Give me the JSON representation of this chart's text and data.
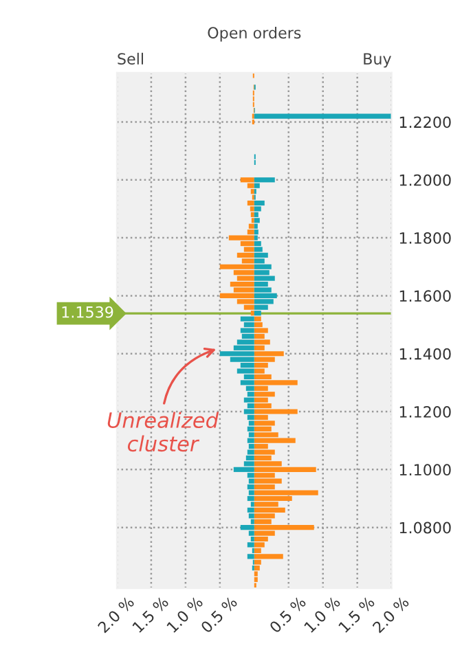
{
  "chart_data": {
    "type": "bar",
    "orientation": "horizontal",
    "title": "Open orders",
    "x": [
      1.236,
      1.234,
      1.232,
      1.23,
      1.228,
      1.226,
      1.224,
      1.222,
      1.22,
      1.218,
      1.216,
      1.214,
      1.212,
      1.21,
      1.208,
      1.206,
      1.204,
      1.202,
      1.2,
      1.198,
      1.196,
      1.194,
      1.192,
      1.19,
      1.188,
      1.186,
      1.184,
      1.182,
      1.18,
      1.178,
      1.176,
      1.174,
      1.172,
      1.17,
      1.168,
      1.166,
      1.164,
      1.162,
      1.16,
      1.158,
      1.156,
      1.154,
      1.152,
      1.15,
      1.148,
      1.146,
      1.144,
      1.142,
      1.14,
      1.138,
      1.136,
      1.134,
      1.132,
      1.13,
      1.128,
      1.126,
      1.124,
      1.122,
      1.12,
      1.118,
      1.116,
      1.114,
      1.112,
      1.11,
      1.108,
      1.106,
      1.104,
      1.102,
      1.1,
      1.098,
      1.096,
      1.094,
      1.092,
      1.09,
      1.088,
      1.086,
      1.084,
      1.082,
      1.08,
      1.078,
      1.076,
      1.074,
      1.072,
      1.07,
      1.068,
      1.066,
      1.064,
      1.062,
      1.06
    ],
    "series": [
      {
        "color": "#ff8c1a",
        "values": [
          -0.02,
          null,
          -0.01,
          -0.02,
          -0.02,
          -0.02,
          -0.01,
          -0.03,
          -0.03,
          null,
          null,
          null,
          null,
          null,
          null,
          null,
          null,
          null,
          -0.2,
          -0.1,
          -0.05,
          -0.03,
          -0.1,
          -0.06,
          -0.05,
          -0.04,
          -0.08,
          -0.1,
          -0.37,
          -0.2,
          -0.15,
          -0.25,
          -0.18,
          -0.5,
          -0.3,
          -0.25,
          -0.35,
          -0.3,
          -0.5,
          -0.25,
          -0.15,
          -0.05,
          0.1,
          0.12,
          0.2,
          0.15,
          0.23,
          0.15,
          0.43,
          0.3,
          0.2,
          0.15,
          0.25,
          0.63,
          0.2,
          0.3,
          0.2,
          0.25,
          0.63,
          0.2,
          0.3,
          0.25,
          0.35,
          0.6,
          0.2,
          0.3,
          0.25,
          0.4,
          0.9,
          0.3,
          0.4,
          0.3,
          0.93,
          0.55,
          0.35,
          0.45,
          0.3,
          0.25,
          0.87,
          0.3,
          0.2,
          0.15,
          0.1,
          0.42,
          0.1,
          0.08,
          0.05,
          0.05,
          0.03
        ]
      },
      {
        "color": "#1aa6b7",
        "values": [
          null,
          null,
          0.02,
          null,
          null,
          null,
          0.01,
          2.0,
          null,
          null,
          null,
          null,
          null,
          null,
          0.02,
          0.02,
          null,
          null,
          0.3,
          0.08,
          0.03,
          0.02,
          0.15,
          0.1,
          0.06,
          0.08,
          0.05,
          0.06,
          0.05,
          0.1,
          0.12,
          0.2,
          0.15,
          0.25,
          0.22,
          0.3,
          0.2,
          0.25,
          0.33,
          0.28,
          0.2,
          0.1,
          -0.2,
          -0.15,
          -0.2,
          -0.18,
          -0.25,
          -0.3,
          -0.5,
          -0.35,
          -0.2,
          -0.25,
          -0.15,
          -0.2,
          -0.12,
          -0.1,
          -0.15,
          -0.1,
          -0.15,
          -0.1,
          -0.08,
          -0.1,
          -0.08,
          -0.1,
          -0.08,
          -0.1,
          -0.12,
          -0.15,
          -0.3,
          -0.1,
          -0.08,
          -0.1,
          -0.08,
          -0.1,
          -0.05,
          -0.1,
          -0.08,
          -0.05,
          -0.2,
          -0.08,
          -0.05,
          -0.1,
          -0.03,
          -0.1,
          -0.02,
          -0.03,
          null,
          null,
          null
        ]
      }
    ],
    "xlim": [
      -2,
      2
    ],
    "xticks": [
      {
        "value": -2,
        "label": "2.0 %"
      },
      {
        "value": -1.5,
        "label": "1.5 %"
      },
      {
        "value": -1,
        "label": "1.0 %"
      },
      {
        "value": -0.5,
        "label": "0.5 %"
      },
      {
        "value": 0.5,
        "label": "0.5 %"
      },
      {
        "value": 1,
        "label": "1.0 %"
      },
      {
        "value": 1.5,
        "label": "1.5 %"
      },
      {
        "value": 2,
        "label": "2.0 %"
      }
    ],
    "ylim": [
      1.059,
      1.237
    ],
    "yticks": [
      {
        "value": 1.08,
        "label": "1.0800"
      },
      {
        "value": 1.1,
        "label": "1.1000"
      },
      {
        "value": 1.12,
        "label": "1.1200"
      },
      {
        "value": 1.14,
        "label": "1.1400"
      },
      {
        "value": 1.16,
        "label": "1.1600"
      },
      {
        "value": 1.18,
        "label": "1.1800"
      },
      {
        "value": 1.2,
        "label": "1.2000"
      },
      {
        "value": 1.22,
        "label": "1.2200"
      }
    ],
    "ref_lines": [
      {
        "axis": "y",
        "value": 1.1539,
        "label": "1.1539",
        "color": "#8db33a"
      }
    ],
    "annotations": [
      "Sell",
      "Buy",
      {
        "text": "Unrealized\ncluster",
        "x": -0.5,
        "y": 1.142
      }
    ],
    "grid": true,
    "stacked": true
  }
}
